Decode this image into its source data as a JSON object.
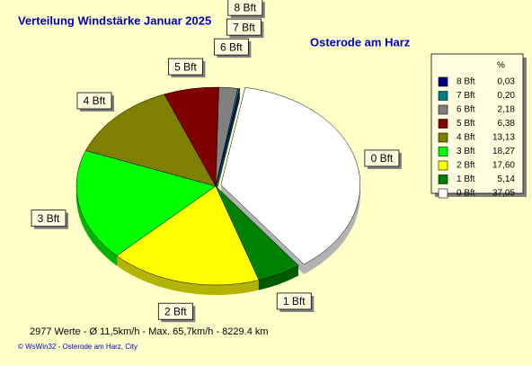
{
  "chart_data": {
    "type": "pie",
    "title": "Verteilung Windstärke  Januar 2025",
    "subtitle": "Osterode am Harz",
    "categories": [
      "8 Bft",
      "7 Bft",
      "6 Bft",
      "5 Bft",
      "4 Bft",
      "3 Bft",
      "2 Bft",
      "1 Bft",
      "0 Bft"
    ],
    "values": [
      0.03,
      0.2,
      2.18,
      6.38,
      13.13,
      18.27,
      17.6,
      5.14,
      37.05
    ],
    "value_labels": [
      "0,03",
      "0,20",
      "2,18",
      "6,38",
      "13,13",
      "18,27",
      "17,60",
      "5,14",
      "37,05"
    ],
    "colors": [
      "#000080",
      "#008080",
      "#808080",
      "#800000",
      "#808000",
      "#00ff00",
      "#ffff00",
      "#008000",
      "#ffffff"
    ],
    "legend_title": "%",
    "footer": "2977 Werte   -   Ø 11,5km/h  -  Max. 65,7km/h   -   8229.4 km",
    "credit": "© WsWin32  -  Osterode am Harz, City"
  }
}
